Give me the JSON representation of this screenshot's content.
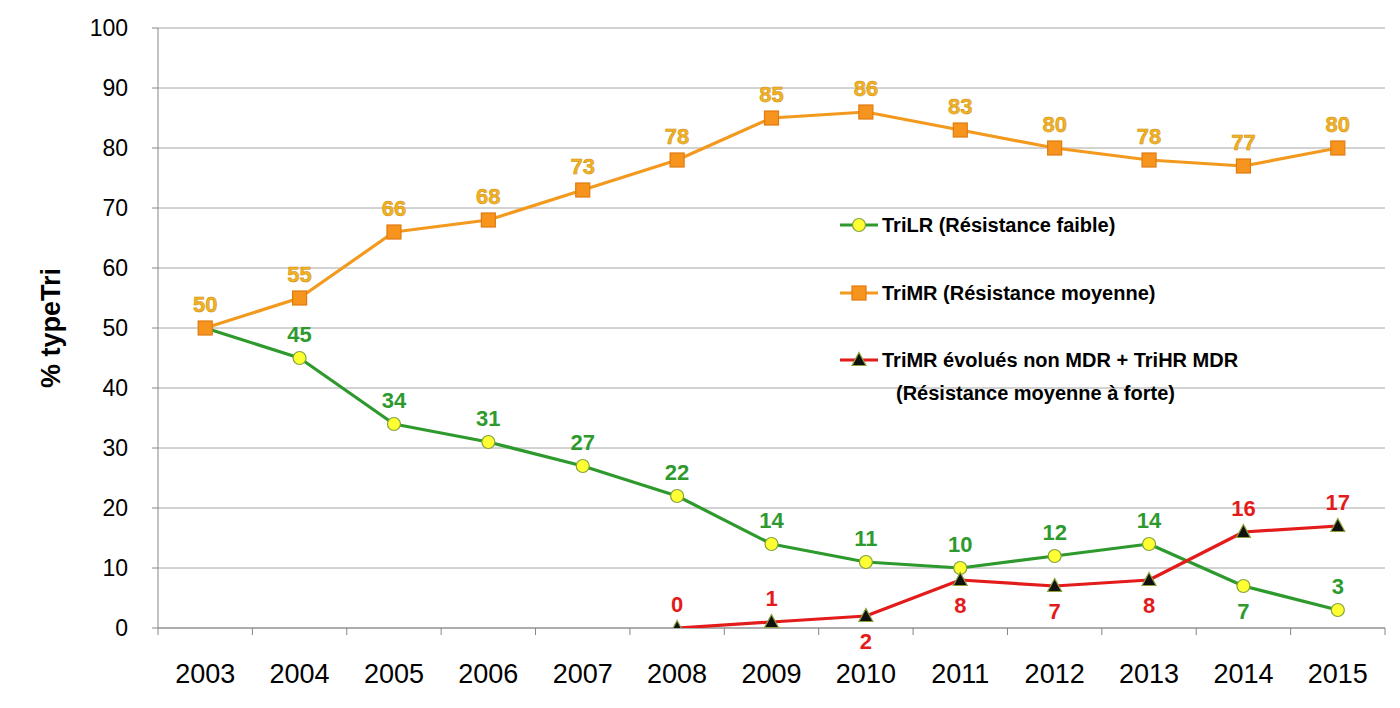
{
  "chart_data": {
    "type": "line",
    "y_label": "% typeTri",
    "categories": [
      "2003",
      "2004",
      "2005",
      "2006",
      "2007",
      "2008",
      "2009",
      "2010",
      "2011",
      "2012",
      "2013",
      "2014",
      "2015"
    ],
    "ylim": [
      0,
      100
    ],
    "yticks": [
      0,
      10,
      20,
      30,
      40,
      50,
      60,
      70,
      80,
      90,
      100
    ],
    "grid": true,
    "legend": "right",
    "data_labels": true,
    "series": [
      {
        "name": "TriLR (Résistance faible)",
        "color": "#2e9a2e",
        "marker": "circle",
        "values": [
          50,
          45,
          34,
          31,
          27,
          22,
          14,
          11,
          10,
          12,
          14,
          7,
          3
        ],
        "value_labels": [
          null,
          "45",
          "34",
          "31",
          "27",
          "22",
          "14",
          "11",
          "10",
          "12",
          "14",
          "7",
          "3"
        ]
      },
      {
        "name": "TriMR (Résistance moyenne)",
        "color": "#f39a1e",
        "marker": "square",
        "values": [
          50,
          55,
          66,
          68,
          73,
          78,
          85,
          86,
          83,
          80,
          78,
          77,
          80
        ]
      },
      {
        "name": "TriMR évolués non MDR + TriHR MDR (Résistance moyenne à forte)",
        "color": "#e31b1b",
        "marker": "triangle",
        "values": [
          null,
          null,
          null,
          null,
          null,
          0,
          1,
          2,
          8,
          7,
          8,
          16,
          17
        ]
      }
    ]
  }
}
